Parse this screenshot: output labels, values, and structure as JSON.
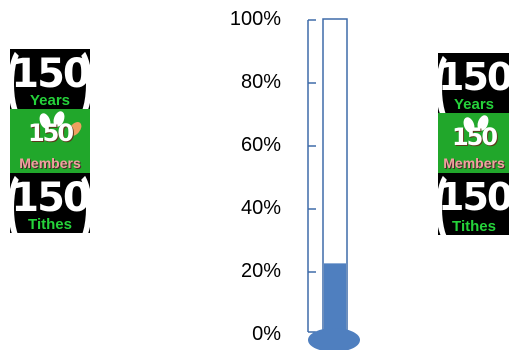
{
  "logo_left": {
    "number": "150",
    "years": "Years",
    "members": "Members",
    "tithes": "Tithes"
  },
  "logo_right": {
    "number": "150",
    "years": "Years",
    "members": "Members",
    "tithes": "Tithes"
  },
  "thermometer": {
    "axis_labels": [
      "100%",
      "80%",
      "60%",
      "40%",
      "20%",
      "0%"
    ],
    "fill_percent": 22,
    "fill_color": "#4f7fbf",
    "outline_color": "#3d6aa8"
  }
}
